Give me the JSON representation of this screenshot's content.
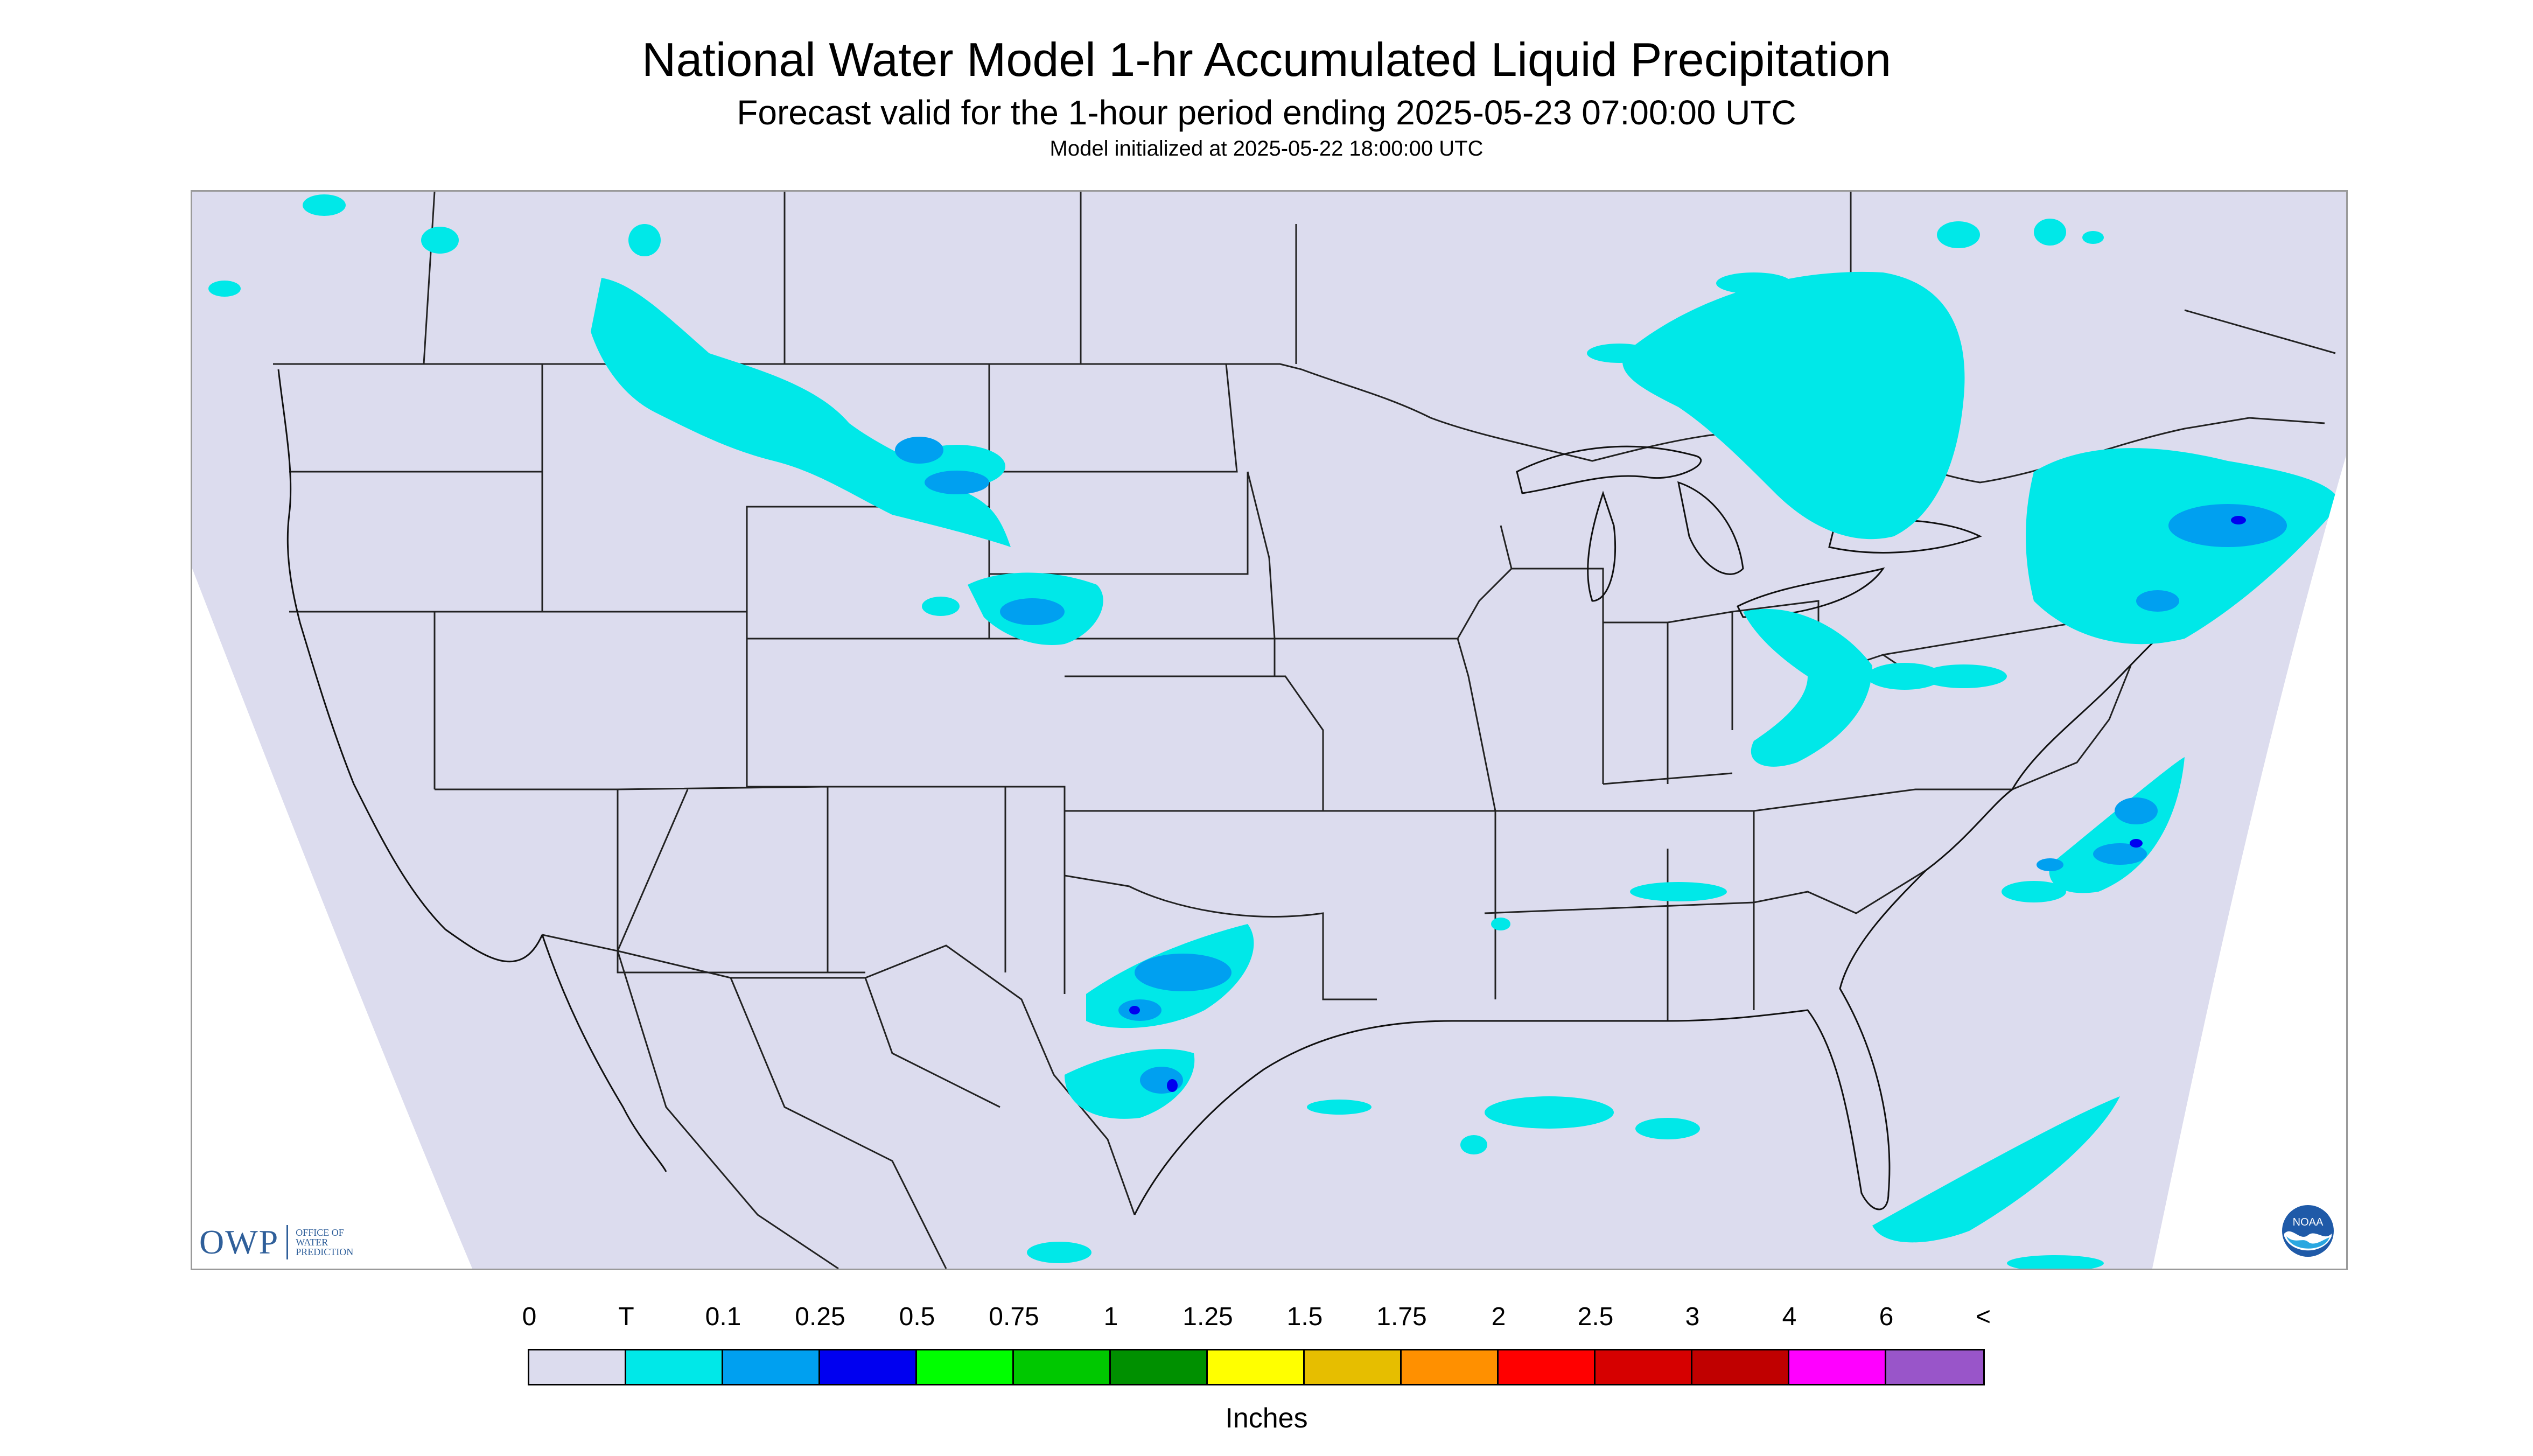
{
  "title": "National Water Model 1-hr Accumulated Liquid Precipitation",
  "subtitle": "Forecast valid for the 1-hour period ending 2025-05-23 07:00:00 UTC",
  "initialized": "Model initialized at 2025-05-22 18:00:00 UTC",
  "logos": {
    "owp_mark": "OWP",
    "owp_text": [
      "OFFICE OF",
      "WATER",
      "PREDICTION"
    ],
    "noaa_text": "NOAA"
  },
  "legend": {
    "units": "Inches",
    "labels": [
      "0",
      "T",
      "0.1",
      "0.25",
      "0.5",
      "0.75",
      "1",
      "1.25",
      "1.5",
      "1.75",
      "2",
      "2.5",
      "3",
      "4",
      "6",
      "<"
    ],
    "colors": [
      "#dcdcee",
      "#00e8e8",
      "#00a0f0",
      "#0000f0",
      "#00ff00",
      "#00c800",
      "#009000",
      "#ffff00",
      "#e6be00",
      "#ff9000",
      "#ff0000",
      "#d60000",
      "#c00000",
      "#ff00ff",
      "#9955c9"
    ]
  },
  "map": {
    "domain_color": "#dcdcee",
    "outside_color": "#ffffff",
    "precip_colors": {
      "trace": "#00e8e8",
      "light": "#00a0f0",
      "moderate": "#0000f0"
    }
  }
}
